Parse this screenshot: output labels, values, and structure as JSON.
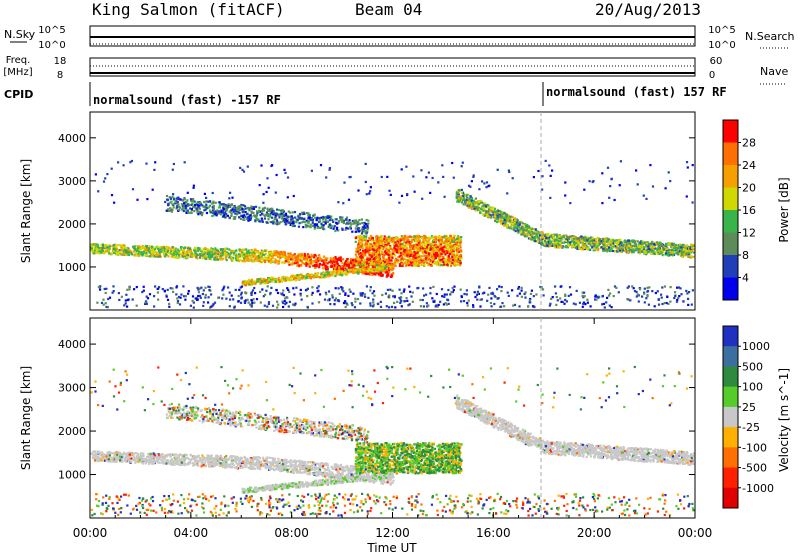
{
  "header": {
    "title": "King Salmon (fitACF)",
    "beam": "Beam 04",
    "date": "20/Aug/2013"
  },
  "top_panels": {
    "nsky_label": "N.Sky",
    "nsearch_label": "N.Search",
    "nsky_ticks": [
      "10^5",
      "10^0"
    ],
    "nsky_right_ticks": [
      "10^5",
      "10^0"
    ],
    "freq_label": "Freq.",
    "freq_unit": "[MHz]",
    "freq_ticks": [
      "18",
      "8"
    ],
    "nave_label": "Nave",
    "nave_ticks": [
      "60",
      "0"
    ],
    "cpid_label": "CPID",
    "cpid_segments": [
      {
        "label": "normalsound (fast) -157 RF",
        "start_hour": 0
      },
      {
        "label": "normalsound (fast) 157 RF",
        "start_hour": 18
      }
    ]
  },
  "chart_data": [
    {
      "type": "heatmap",
      "name": "power",
      "ylabel": "Slant Range [km]",
      "ylim": [
        0,
        4600
      ],
      "yticks": [
        1000,
        2000,
        3000,
        4000
      ],
      "xlim_hours": [
        0,
        24
      ],
      "colorbar": {
        "label": "Power [dB]",
        "ticks": [
          "28",
          "24",
          "20",
          "16",
          "12",
          "8",
          "4"
        ],
        "colors": [
          "#ff0000",
          "#ff7000",
          "#f6a000",
          "#cfd800",
          "#38b44a",
          "#5e8c58",
          "#1f3fb8",
          "#0000ee"
        ]
      }
    },
    {
      "type": "heatmap",
      "name": "velocity",
      "ylabel": "Slant Range [km]",
      "ylim": [
        0,
        4600
      ],
      "yticks": [
        1000,
        2000,
        3000,
        4000
      ],
      "xlim_hours": [
        0,
        24
      ],
      "xlabel": "Time UT",
      "xticks": [
        "00:00",
        "04:00",
        "08:00",
        "12:00",
        "16:00",
        "20:00",
        "00:00"
      ],
      "colorbar": {
        "label": "Velocity [m s^-1]",
        "ticks": [
          "1000",
          "500",
          "100",
          "25",
          "-25",
          "-100",
          "-500",
          "-1000"
        ],
        "colors": [
          "#2030c0",
          "#3c6fa0",
          "#2e8a3e",
          "#56cc2a",
          "#c8c8c8",
          "#ffb000",
          "#ff7000",
          "#ff2000",
          "#e00000"
        ]
      }
    }
  ]
}
